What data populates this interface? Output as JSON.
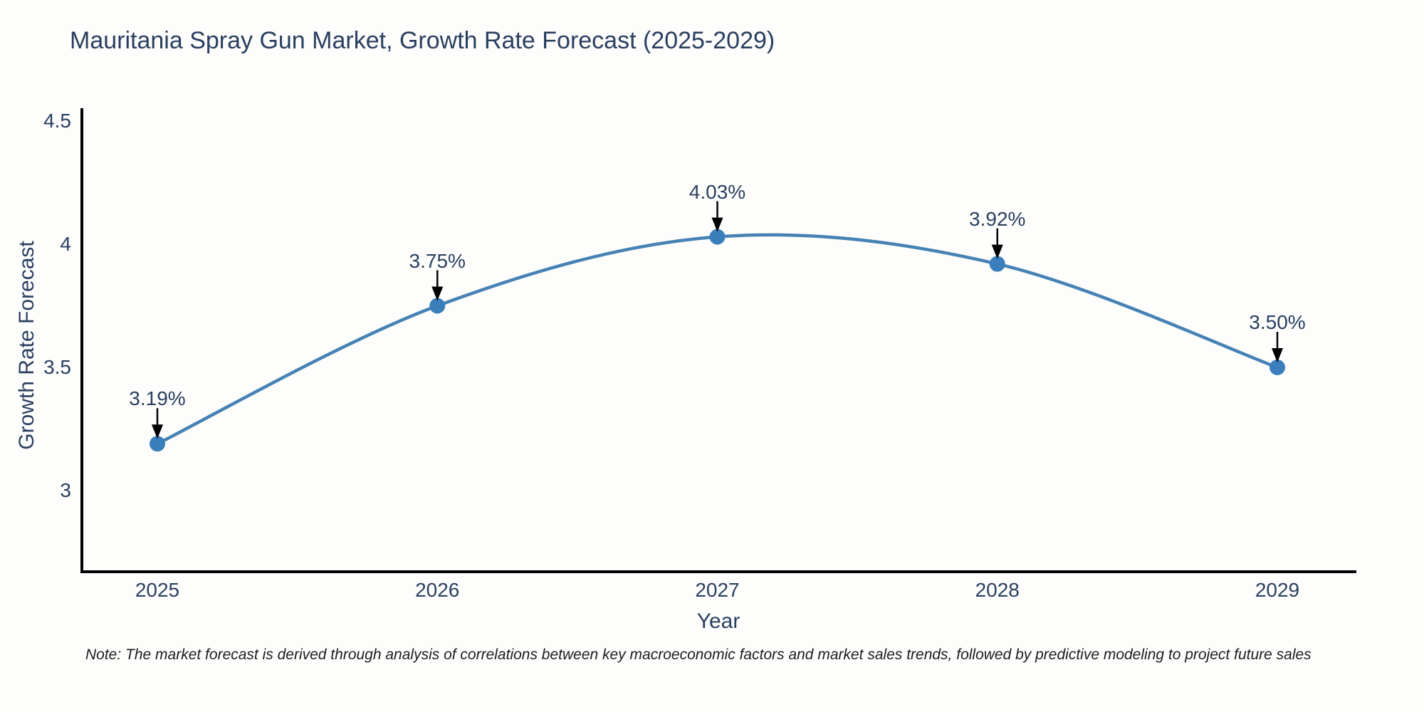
{
  "header": {
    "title": "Mauritania Spray Gun Market, Growth Rate Forecast (2025-2029)"
  },
  "chart_data": {
    "type": "line",
    "title": "Mauritania Spray Gun Market, Growth Rate Forecast (2025-2029)",
    "categories": [
      "2025",
      "2026",
      "2027",
      "2028",
      "2029"
    ],
    "values": [
      3.19,
      3.75,
      4.03,
      3.92,
      3.5
    ],
    "point_labels": [
      "3.19%",
      "3.75%",
      "4.03%",
      "3.92%",
      "3.50%"
    ],
    "series": [
      {
        "name": "Growth Rate Forecast",
        "values": [
          3.19,
          3.75,
          4.03,
          3.92,
          3.5
        ]
      }
    ],
    "xlabel": "Year",
    "ylabel": "Growth Rate Forecast",
    "y_ticks": [
      4.5,
      4,
      3.5,
      3
    ],
    "y_tick_labels": [
      "4.5",
      "4",
      "3.5",
      "3"
    ],
    "ylim": [
      2.67,
      4.55
    ],
    "line_shape": "spline",
    "grid": false,
    "legend": false,
    "annotations_have_arrows": true,
    "colors": {
      "line": "#4682b4",
      "marker": "#3a7ebc",
      "axis": "#000000",
      "text": "#2a3f5f",
      "arrow": "#000000",
      "background": "#fdfdfc"
    }
  },
  "footer": {
    "note": "Note: The market forecast is derived through analysis of correlations between key macroeconomic factors and market sales trends, followed by predictive modeling to project future sales"
  }
}
